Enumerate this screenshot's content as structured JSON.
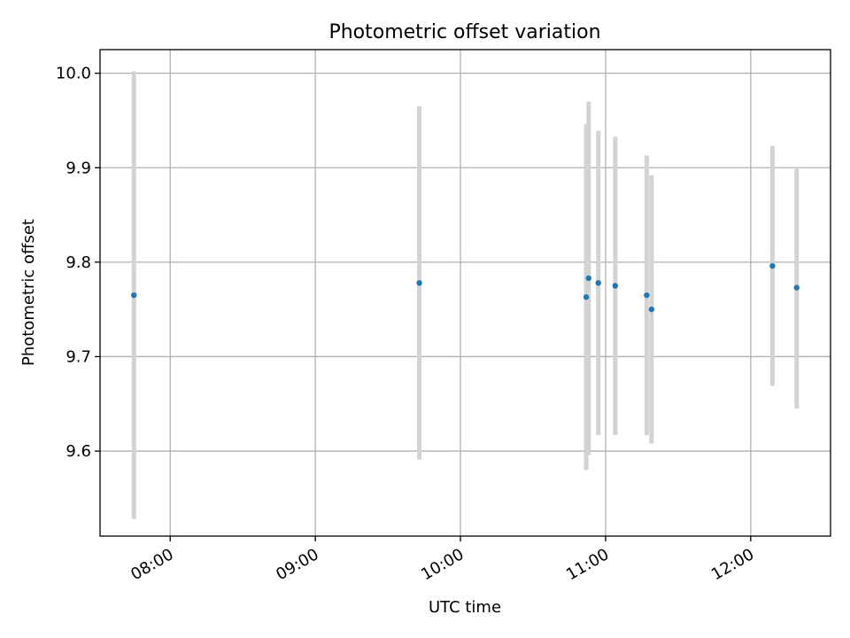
{
  "chart_data": {
    "type": "scatter",
    "title": "Photometric offset variation",
    "xlabel": "UTC time",
    "ylabel": "Photometric offset",
    "x_ticks": [
      "08:00",
      "09:00",
      "10:00",
      "11:00",
      "12:00"
    ],
    "y_ticks": [
      "9.6",
      "9.7",
      "9.8",
      "9.9",
      "10.0"
    ],
    "xlim": [
      "07:31",
      "12:33"
    ],
    "ylim": [
      9.51,
      10.025
    ],
    "grid": true,
    "point_color": "#1f77b4",
    "errorbar_color": "#d3d3d3",
    "points": [
      {
        "x": "07:45",
        "y": 9.765,
        "yerr": 0.237
      },
      {
        "x": "09:43",
        "y": 9.778,
        "yerr": 0.187
      },
      {
        "x": "10:52",
        "y": 9.763,
        "yerr": 0.183
      },
      {
        "x": "10:53",
        "y": 9.783,
        "yerr": 0.187
      },
      {
        "x": "10:57",
        "y": 9.778,
        "yerr": 0.161
      },
      {
        "x": "11:04",
        "y": 9.775,
        "yerr": 0.158
      },
      {
        "x": "11:17",
        "y": 9.765,
        "yerr": 0.148
      },
      {
        "x": "11:19",
        "y": 9.75,
        "yerr": 0.142
      },
      {
        "x": "12:09",
        "y": 9.796,
        "yerr": 0.127
      },
      {
        "x": "12:19",
        "y": 9.773,
        "yerr": 0.128
      }
    ]
  }
}
